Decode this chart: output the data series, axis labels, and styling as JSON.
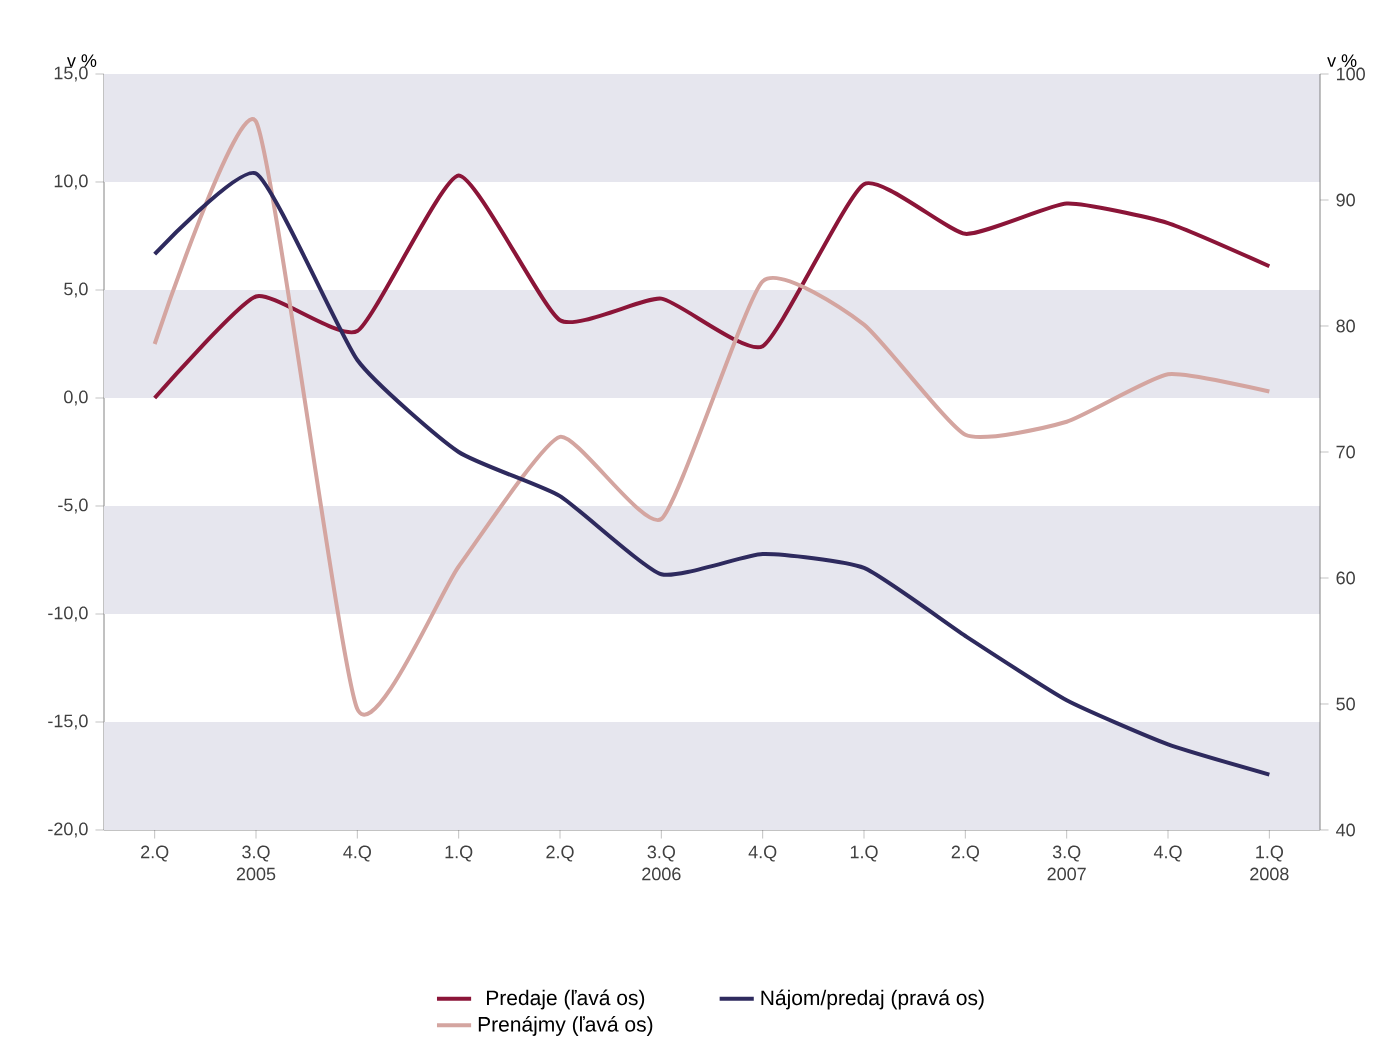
{
  "chart_data": {
    "type": "line",
    "ylabel": "v %",
    "y2label": "v %",
    "categories": [
      "2.Q",
      "3.Q 2005",
      "4.Q",
      "1.Q",
      "2.Q",
      "3.Q 2006",
      "4.Q",
      "1.Q",
      "2.Q",
      "3.Q 2007",
      "4.Q",
      "1.Q 2008"
    ],
    "series": [
      {
        "name": "Predaje (ľavá os)",
        "color": "#8b1538",
        "values": [
          0.0,
          4.7,
          3.1,
          10.3,
          3.6,
          4.6,
          2.4,
          9.9,
          7.6,
          9.0,
          8.1,
          6.1
        ]
      },
      {
        "name": "Nájom/predaj (pravá os)",
        "color": "#2e2a5e",
        "axis": "y2",
        "values": [
          85.7,
          92.1,
          77.3,
          70.0,
          66.5,
          60.3,
          61.9,
          60.8,
          55.4,
          50.3,
          46.8,
          44.4
        ]
      },
      {
        "name": "Prenájmy (ľavá os)",
        "color": "#d4a5a0",
        "values": [
          2.5,
          12.8,
          -14.4,
          -7.8,
          -1.8,
          -5.6,
          5.4,
          3.4,
          -1.7,
          -1.1,
          1.1,
          0.3
        ]
      }
    ],
    "ylim": [
      -20,
      15
    ],
    "yticks": [
      {
        "value": -20,
        "label": "-20,0"
      },
      {
        "value": -15,
        "label": "-15,0"
      },
      {
        "value": -10,
        "label": "-10,0"
      },
      {
        "value": -5,
        "label": "-5,0"
      },
      {
        "value": 0,
        "label": "0,0"
      },
      {
        "value": 5,
        "label": "5,0"
      },
      {
        "value": 10,
        "label": "10,0"
      },
      {
        "value": 15,
        "label": "15,0"
      }
    ],
    "y2lim": [
      40,
      100
    ],
    "y2ticks": [
      40,
      50,
      60,
      70,
      80,
      90,
      100
    ],
    "bands": [
      {
        "axis": "y",
        "from": 10,
        "to": 15,
        "color": "#e6e6ee"
      },
      {
        "axis": "y",
        "from": 0,
        "to": 5,
        "color": "#e6e6ee"
      },
      {
        "axis": "y",
        "from": -10,
        "to": -5,
        "color": "#e6e6ee"
      },
      {
        "axis": "y",
        "from": -20,
        "to": -15,
        "color": "#e6e6ee"
      }
    ],
    "grid": false,
    "marker": "none",
    "legend": "bottom"
  }
}
